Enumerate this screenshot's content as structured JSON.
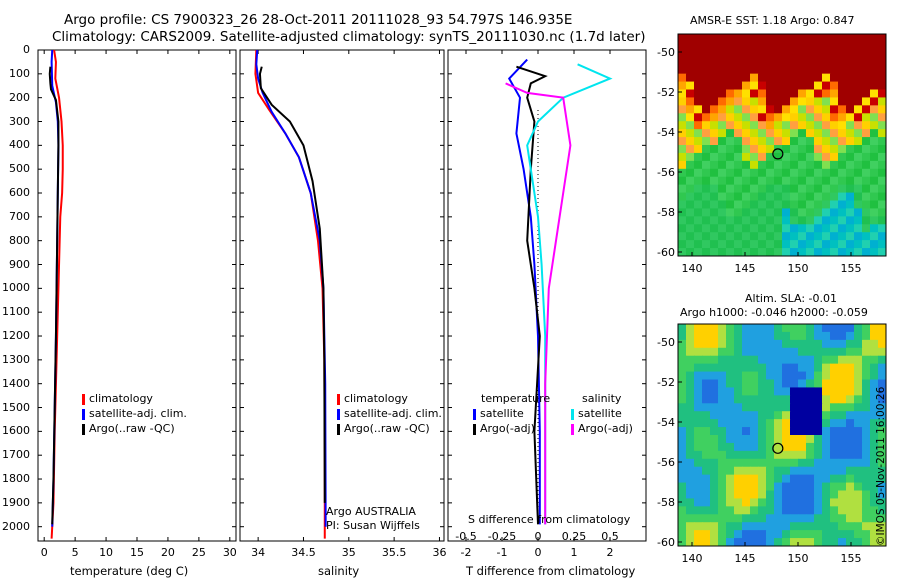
{
  "header": {
    "line1": "Argo profile: CS 7900323_26 28-Oct-2011 20111028_93 54.797S 146.935E",
    "line2": "Climatology: CARS2009. Satellite-adjusted climatology: synTS_20111030.nc (1.7d later)"
  },
  "sst_map": {
    "title": "AMSR-E SST: 1.18 Argo: 0.847",
    "xticks": [
      "140",
      "145",
      "150",
      "155"
    ],
    "yticks": [
      "-50",
      "-52",
      "-54",
      "-56",
      "-58",
      "-60"
    ]
  },
  "sla_map": {
    "title1": "Altim. SLA: -0.01",
    "title2": "Argo h1000: -0.046 h2000: -0.059",
    "xticks": [
      "140",
      "145",
      "150",
      "155"
    ],
    "yticks": [
      "-50",
      "-52",
      "-54",
      "-56",
      "-58",
      "-60"
    ],
    "stamp": "©IMOS 05-Nov-2011 16:00:26"
  },
  "colors": {
    "climatology": "#ff0000",
    "satellite": "#0000ff",
    "argo": "#000000",
    "salinity_satellite": "#00e5ee",
    "salinity_argo": "#ff00ff"
  },
  "chart_data": [
    {
      "type": "line",
      "id": "temperature",
      "xlabel": "temperature (deg C)",
      "xticks": [
        "0",
        "5",
        "10",
        "15",
        "20",
        "25",
        "30"
      ],
      "xlim": [
        -1,
        31
      ],
      "ylim": [
        2060,
        0
      ],
      "yticks": [
        "0",
        "100",
        "200",
        "300",
        "400",
        "500",
        "600",
        "700",
        "800",
        "900",
        "1000",
        "1100",
        "1200",
        "1300",
        "1400",
        "1500",
        "1600",
        "1700",
        "1800",
        "1900",
        "2000"
      ],
      "legend": [
        "climatology",
        "satellite-adj. clim.",
        "Argo(..raw -QC)"
      ],
      "series": [
        {
          "name": "climatology",
          "color": "#ff0000",
          "x": [
            1.6,
            1.9,
            1.8,
            2.4,
            2.8,
            3.0,
            3.0,
            2.9,
            2.6,
            2.4,
            2.2,
            2.0,
            1.7,
            1.5,
            1.2
          ],
          "y": [
            0,
            50,
            120,
            200,
            300,
            400,
            500,
            600,
            700,
            900,
            1100,
            1300,
            1600,
            1900,
            2050
          ]
        },
        {
          "name": "satellite-adj. clim.",
          "color": "#0000ff",
          "x": [
            1.3,
            1.2,
            1.3,
            1.9,
            2.2,
            2.3,
            2.2,
            2.1,
            2.0,
            1.9,
            1.7,
            1.5,
            1.3
          ],
          "y": [
            0,
            50,
            150,
            220,
            300,
            400,
            600,
            800,
            1000,
            1200,
            1500,
            1800,
            2000
          ]
        },
        {
          "name": "Argo(..raw -QC)",
          "color": "#000000",
          "x": [
            1.0,
            0.9,
            1.0,
            1.1,
            1.9,
            2.3,
            2.3,
            2.2,
            2.1,
            2.0,
            1.9,
            1.7,
            1.5,
            1.3
          ],
          "y": [
            70,
            100,
            140,
            165,
            210,
            300,
            400,
            600,
            800,
            1000,
            1200,
            1500,
            1800,
            1990
          ]
        }
      ]
    },
    {
      "type": "line",
      "id": "salinity",
      "xlabel": "salinity",
      "xticks": [
        "34",
        "34.5",
        "35",
        "35.5",
        "36"
      ],
      "xlim": [
        33.8,
        36.05
      ],
      "ylim": [
        2060,
        0
      ],
      "legend": [
        "climatology",
        "satellite-adj. clim.",
        "Argo(..raw -QC)"
      ],
      "annotation": [
        "Argo AUSTRALIA",
        "PI: Susan Wijffels"
      ],
      "series": [
        {
          "name": "climatology",
          "color": "#ff0000",
          "x": [
            33.98,
            33.97,
            34.0,
            34.12,
            34.3,
            34.45,
            34.58,
            34.66,
            34.71,
            34.73,
            34.735,
            34.735
          ],
          "y": [
            0,
            100,
            180,
            250,
            350,
            450,
            600,
            800,
            1000,
            1300,
            1700,
            2050
          ]
        },
        {
          "name": "satellite-adj. clim.",
          "color": "#0000ff",
          "x": [
            33.99,
            33.98,
            34.0,
            34.05,
            34.15,
            34.3,
            34.45,
            34.58,
            34.68,
            34.72,
            34.74,
            34.745
          ],
          "y": [
            0,
            60,
            120,
            180,
            260,
            350,
            450,
            600,
            800,
            1000,
            1400,
            2000
          ]
        },
        {
          "name": "Argo(..raw -QC)",
          "color": "#000000",
          "x": [
            34.04,
            34.02,
            34.03,
            34.15,
            34.35,
            34.5,
            34.6,
            34.68,
            34.72,
            34.73,
            34.735
          ],
          "y": [
            70,
            100,
            160,
            230,
            300,
            400,
            550,
            750,
            1000,
            1300,
            1900
          ]
        }
      ]
    },
    {
      "type": "line",
      "id": "difference",
      "xlabel": "T difference from climatology",
      "xlabel_top": "S difference from climatology",
      "xticks": [
        "-2",
        "-1",
        "0",
        "1",
        "2"
      ],
      "xticks_top": [
        "-0.5",
        "-0.25",
        "0",
        "0.25",
        "0.5"
      ],
      "xlim": [
        -2.5,
        3.0
      ],
      "ylim": [
        2060,
        0
      ],
      "legend": {
        "temperature_heading": "temperature",
        "salinity_heading": "salinity",
        "items": [
          "satellite",
          "Argo(-adj)",
          "satellite",
          "Argo(-adj)"
        ]
      },
      "series": [
        {
          "name": "satellite",
          "color": "#0000ff",
          "x": [
            -0.3,
            -0.8,
            -0.5,
            -0.6,
            -0.4,
            -0.2,
            -0.1,
            0.0,
            0.05,
            0.05
          ],
          "y": [
            40,
            120,
            200,
            350,
            500,
            700,
            900,
            1200,
            1600,
            1990
          ]
        },
        {
          "name": "Argo(-adj)",
          "color": "#000000",
          "x": [
            -0.6,
            0.2,
            -0.2,
            -0.3,
            -0.1,
            -0.2,
            -0.3,
            -0.1,
            0.05,
            -0.1,
            0.0
          ],
          "y": [
            70,
            110,
            140,
            200,
            300,
            500,
            800,
            1000,
            1200,
            1600,
            1990
          ]
        },
        {
          "name": "satellite",
          "color": "#00e5ee",
          "x": [
            1.1,
            2.0,
            0.7,
            0.0,
            -0.3,
            -0.2,
            0.0,
            0.1,
            0.2,
            0.2
          ],
          "y": [
            60,
            120,
            200,
            300,
            400,
            500,
            700,
            900,
            1200,
            1990
          ]
        },
        {
          "name": "Argo(-adj)",
          "color": "#ff00ff",
          "x": [
            -0.9,
            -0.3,
            0.7,
            0.8,
            0.9,
            0.7,
            0.5,
            0.3,
            0.2,
            0.2
          ],
          "y": [
            140,
            180,
            200,
            300,
            400,
            600,
            800,
            1000,
            1400,
            1990
          ]
        }
      ]
    }
  ]
}
